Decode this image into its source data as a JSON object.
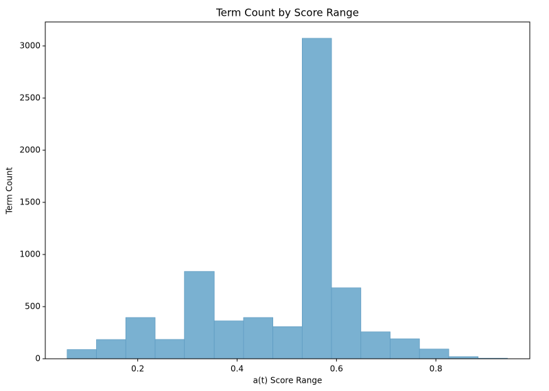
{
  "chart_data": {
    "type": "histogram",
    "title": "Term Count by Score Range",
    "x_label": "a(t) Score Range",
    "y_label": "Term Count",
    "bins": [
      0.058,
      0.117,
      0.176,
      0.235,
      0.294,
      0.354,
      0.413,
      0.472,
      0.531,
      0.59,
      0.649,
      0.708,
      0.767,
      0.826,
      0.885,
      0.944
    ],
    "counts": [
      88,
      184,
      395,
      185,
      837,
      363,
      395,
      308,
      3073,
      680,
      258,
      191,
      93,
      20,
      5
    ],
    "color": "#7ab1d1",
    "edge_color": "#5f9cc2",
    "xlim": [
      0.014,
      0.989
    ],
    "ylim": [
      0,
      3230
    ],
    "xticks": [
      0.2,
      0.4,
      0.6,
      0.8
    ],
    "yticks": [
      0,
      500,
      1000,
      1500,
      2000,
      2500,
      3000
    ],
    "grid": false
  }
}
